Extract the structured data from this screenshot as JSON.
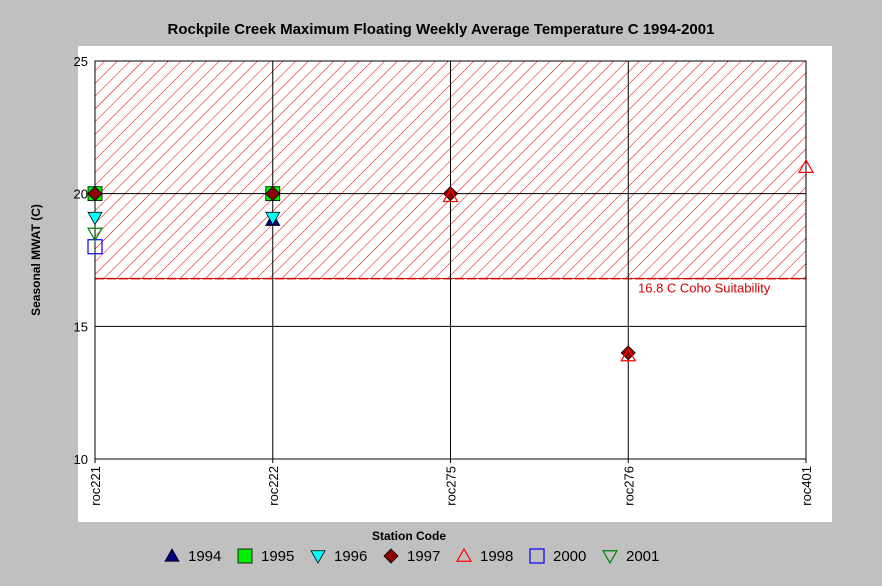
{
  "chart_data": {
    "type": "scatter",
    "title": "Rockpile Creek Maximum Floating Weekly Average Temperature C 1994-2001",
    "xlabel": "Station Code",
    "ylabel": "Seasonal MWAT  (C)",
    "categories": [
      "roc221",
      "roc222",
      "roc275",
      "roc276",
      "roc401"
    ],
    "ylim": [
      10,
      25
    ],
    "yticks": [
      "10",
      "15",
      "20",
      "25"
    ],
    "grid": true,
    "legend_position": "bottom",
    "threshold": {
      "value": 16.8,
      "label": "16.8 C Coho Suitability",
      "color": "#d40000",
      "shaded_above": true
    },
    "series": [
      {
        "name": "1994",
        "marker": "triangle-up-filled",
        "color": "#000080",
        "values": [
          null,
          19.0,
          null,
          null,
          null
        ]
      },
      {
        "name": "1995",
        "marker": "square-filled",
        "color": "#00ee00",
        "values": [
          20.0,
          20.0,
          null,
          null,
          null
        ]
      },
      {
        "name": "1996",
        "marker": "triangle-down-filled",
        "color": "#00ffff",
        "values": [
          19.1,
          19.1,
          null,
          null,
          null
        ]
      },
      {
        "name": "1997",
        "marker": "diamond-filled",
        "color": "#8b0000",
        "values": [
          20.0,
          20.0,
          20.0,
          14.0,
          null
        ]
      },
      {
        "name": "1998",
        "marker": "triangle-up-open",
        "color": "#ff0000",
        "values": [
          null,
          null,
          19.9,
          13.9,
          21.0
        ]
      },
      {
        "name": "2000",
        "marker": "square-open",
        "color": "#0000ff",
        "values": [
          18.0,
          null,
          null,
          null,
          null
        ]
      },
      {
        "name": "2001",
        "marker": "triangle-down-open",
        "color": "#008000",
        "values": [
          18.5,
          null,
          null,
          null,
          null
        ]
      }
    ]
  }
}
